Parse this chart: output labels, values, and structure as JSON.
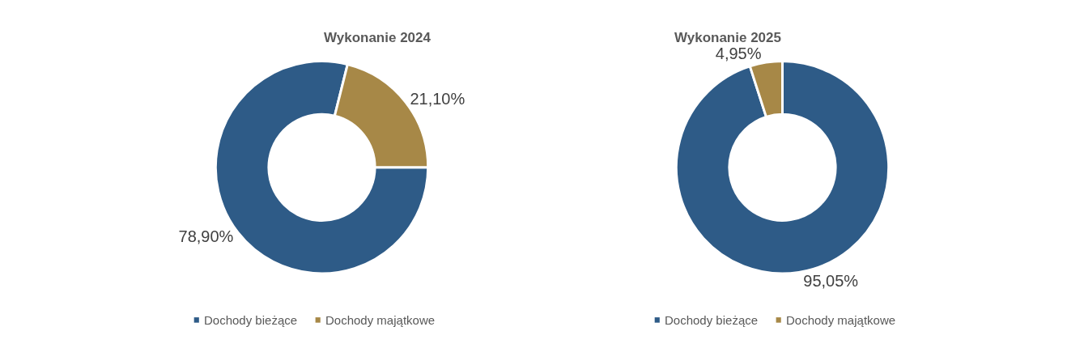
{
  "chart_data": [
    {
      "type": "donut",
      "title": "Wykonanie 2024",
      "categories": [
        "Dochody bieżące",
        "Dochody majątkowe"
      ],
      "values": [
        78.9,
        21.1
      ],
      "colors": [
        "#2e5b87",
        "#a78847"
      ],
      "value_labels": [
        "78,90%",
        "21,10%"
      ],
      "legend": "bottom"
    },
    {
      "type": "donut",
      "title": "Wykonanie 2025",
      "categories": [
        "Dochody bieżące",
        "Dochody majątkowe"
      ],
      "values": [
        95.05,
        4.95
      ],
      "colors": [
        "#2e5b87",
        "#a78847"
      ],
      "value_labels": [
        "95,05%",
        "4,95%"
      ],
      "legend": "bottom"
    }
  ]
}
